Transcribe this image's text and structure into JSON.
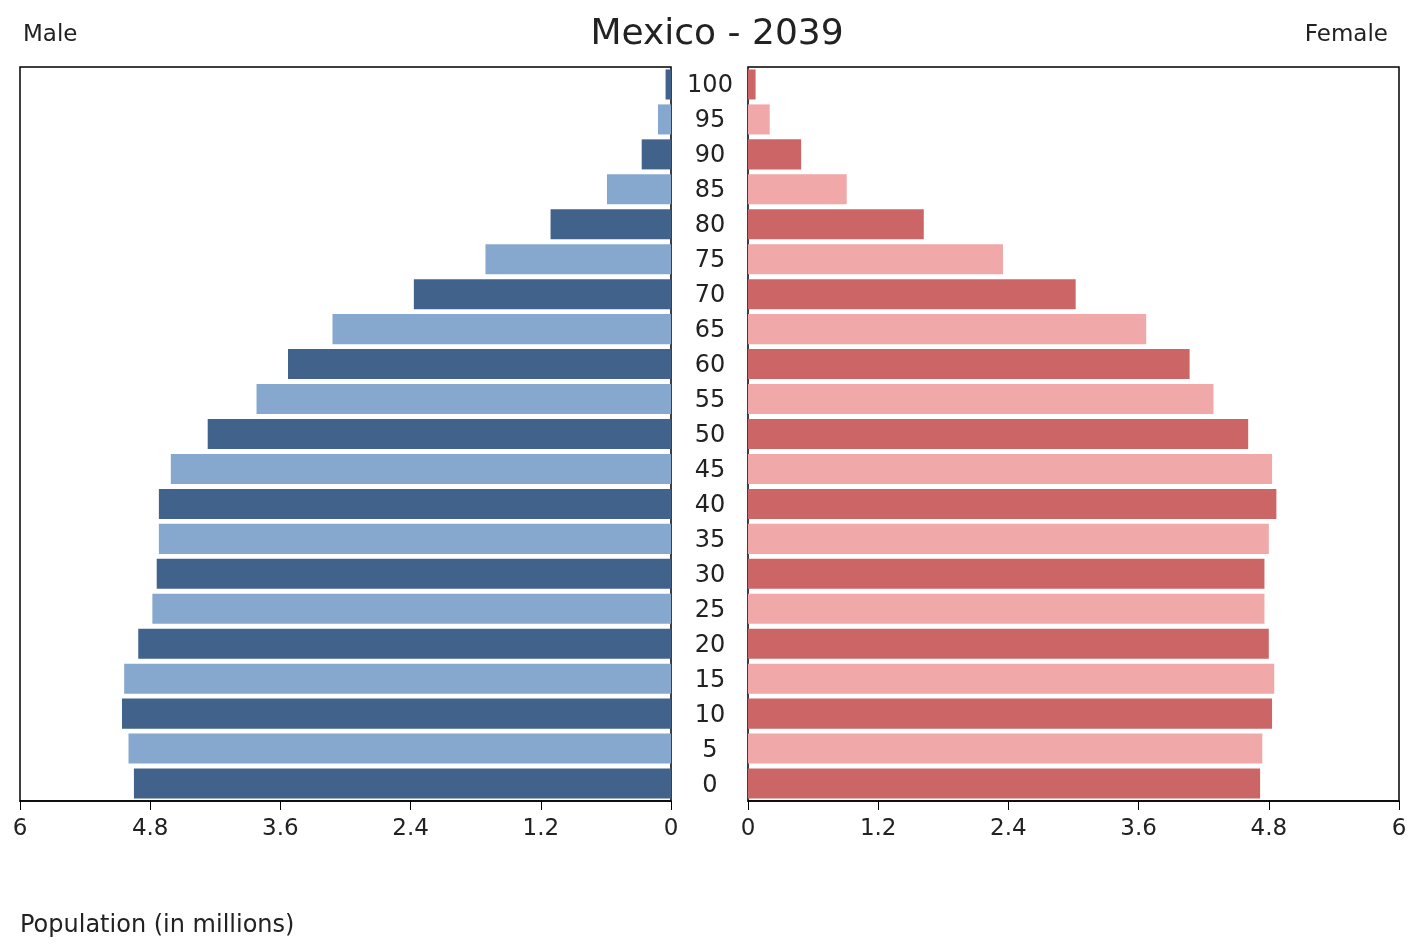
{
  "chart_data": [
    {
      "type": "bar",
      "orientation": "horizontal",
      "title": "Mexico - 2039",
      "subtitle": "Male",
      "xlabel": "Population (in millions)",
      "tick_labels": "x",
      "categories": [
        "100",
        "95",
        "90",
        "85",
        "80",
        "75",
        "70",
        "65",
        "60",
        "55",
        "50",
        "45",
        "40",
        "35",
        "30",
        "25",
        "20",
        "15",
        "10",
        "5",
        "0"
      ],
      "values": [
        0.05,
        0.12,
        0.27,
        0.59,
        1.11,
        1.71,
        2.37,
        3.12,
        3.53,
        3.82,
        4.27,
        4.61,
        4.72,
        4.72,
        4.74,
        4.78,
        4.91,
        5.04,
        5.06,
        5.0,
        4.95
      ],
      "colors": [
        "#41628a",
        "#86a8cf",
        "#41628a",
        "#86a8cf",
        "#41628a",
        "#86a8cf",
        "#41628a",
        "#86a8cf",
        "#41628a",
        "#86a8cf",
        "#41628a",
        "#86a8cf",
        "#41628a",
        "#86a8cf",
        "#41628a",
        "#86a8cf",
        "#41628a",
        "#86a8cf",
        "#41628a",
        "#86a8cf",
        "#41628a"
      ],
      "xlim": [
        6,
        0
      ],
      "xticks": [
        6,
        4.8,
        3.6,
        2.4,
        1.2,
        0
      ]
    },
    {
      "type": "bar",
      "orientation": "horizontal",
      "title": "Female",
      "categories": [
        "100",
        "95",
        "90",
        "85",
        "80",
        "75",
        "70",
        "65",
        "60",
        "55",
        "50",
        "45",
        "40",
        "35",
        "30",
        "25",
        "20",
        "15",
        "10",
        "5",
        "0"
      ],
      "values": [
        0.07,
        0.2,
        0.49,
        0.91,
        1.62,
        2.35,
        3.02,
        3.67,
        4.07,
        4.29,
        4.61,
        4.83,
        4.87,
        4.8,
        4.76,
        4.76,
        4.8,
        4.85,
        4.83,
        4.74,
        4.72
      ],
      "colors": [
        "#cc6666",
        "#f0a8a8",
        "#cc6666",
        "#f0a8a8",
        "#cc6666",
        "#f0a8a8",
        "#cc6666",
        "#f0a8a8",
        "#cc6666",
        "#f0a8a8",
        "#cc6666",
        "#f0a8a8",
        "#cc6666",
        "#f0a8a8",
        "#cc6666",
        "#f0a8a8",
        "#cc6666",
        "#f0a8a8",
        "#cc6666",
        "#f0a8a8",
        "#cc6666"
      ],
      "xlim": [
        0,
        6
      ],
      "xticks": [
        0,
        1.2,
        2.4,
        3.6,
        4.8,
        6
      ]
    }
  ]
}
